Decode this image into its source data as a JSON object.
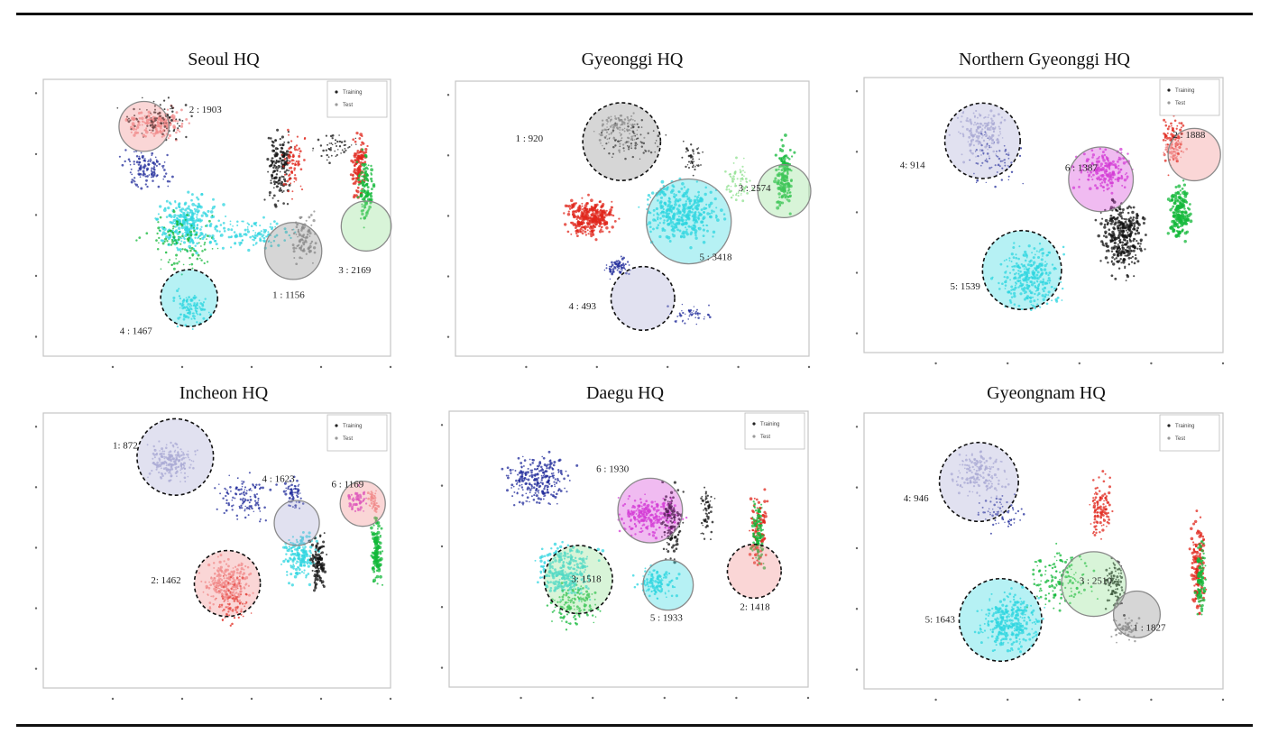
{
  "figure": {
    "colors": {
      "black": "#111111",
      "red": "#e0251b",
      "green": "#13b83a",
      "blue": "#1f2a9a",
      "cyan": "#2fd6e0",
      "magenta": "#d43cd6",
      "pink": "#f08a8a",
      "lavender": "#a9a9d4",
      "lightgreen": "#8fe08f",
      "gray": "#8a8a8a"
    }
  },
  "chart_data": [
    {
      "type": "scatter",
      "title": "Seoul  HQ",
      "legend": {
        "entries": [
          "Training",
          "Test"
        ],
        "placement": "top-right"
      },
      "clusters": [
        {
          "label": "2 : 1903",
          "id": 2,
          "count": 1903,
          "color": "pink"
        },
        {
          "label": "1 : 1156",
          "id": 1,
          "count": 1156,
          "color": "gray"
        },
        {
          "label": "3 : 2169",
          "id": 3,
          "count": 2169,
          "color": "lightgreen"
        },
        {
          "label": "4 : 1467",
          "id": 4,
          "count": 1467,
          "color": "cyan"
        }
      ]
    },
    {
      "type": "scatter",
      "title": "Gyeonggi  HQ",
      "legend": {
        "entries": [],
        "placement": "none"
      },
      "clusters": [
        {
          "label": "1 : 920",
          "id": 1,
          "count": 920,
          "color": "gray"
        },
        {
          "label": "3 : 2574",
          "id": 3,
          "count": 2574,
          "color": "lightgreen"
        },
        {
          "label": "5 : 3418",
          "id": 5,
          "count": 3418,
          "color": "cyan"
        },
        {
          "label": "4 : 493",
          "id": 4,
          "count": 493,
          "color": "lavender"
        }
      ]
    },
    {
      "type": "scatter",
      "title": "Northern  Gyeonggi  HQ",
      "legend": {
        "entries": [
          "Training",
          "Test"
        ],
        "placement": "top-right"
      },
      "clusters": [
        {
          "label": "4: 914",
          "id": 4,
          "count": 914,
          "color": "lavender"
        },
        {
          "label": "6 : 1387",
          "id": 6,
          "count": 1387,
          "color": "magenta"
        },
        {
          "label": "2 : 1888",
          "id": 2,
          "count": 1888,
          "color": "pink"
        },
        {
          "label": "5: 1539",
          "id": 5,
          "count": 1539,
          "color": "cyan"
        }
      ]
    },
    {
      "type": "scatter",
      "title": "Incheon  HQ",
      "legend": {
        "entries": [
          "Training",
          "Test"
        ],
        "placement": "top-right"
      },
      "clusters": [
        {
          "label": "1: 872",
          "id": 1,
          "count": 872,
          "color": "lavender"
        },
        {
          "label": "4 : 1623",
          "id": 4,
          "count": 1623,
          "color": "lavender"
        },
        {
          "label": "6 : 1169",
          "id": 6,
          "count": 1169,
          "color": "pink"
        },
        {
          "label": "2: 1462",
          "id": 2,
          "count": 1462,
          "color": "pink"
        }
      ]
    },
    {
      "type": "scatter",
      "title": "Daegu  HQ",
      "legend": {
        "entries": [
          "Training",
          "Test"
        ],
        "placement": "top-right"
      },
      "clusters": [
        {
          "label": "6 : 1930",
          "id": 6,
          "count": 1930,
          "color": "magenta"
        },
        {
          "label": "3: 1518",
          "id": 3,
          "count": 1518,
          "color": "lightgreen"
        },
        {
          "label": "5 : 1933",
          "id": 5,
          "count": 1933,
          "color": "cyan"
        },
        {
          "label": "2: 1418",
          "id": 2,
          "count": 1418,
          "color": "pink"
        }
      ]
    },
    {
      "type": "scatter",
      "title": "Gyeongnam  HQ",
      "legend": {
        "entries": [
          "Training",
          "Test"
        ],
        "placement": "top-right"
      },
      "clusters": [
        {
          "label": "4: 946",
          "id": 4,
          "count": 946,
          "color": "lavender"
        },
        {
          "label": "3 : 2510",
          "id": 3,
          "count": 2510,
          "color": "lightgreen"
        },
        {
          "label": "1 : 1827",
          "id": 1,
          "count": 1827,
          "color": "gray"
        },
        {
          "label": "5: 1643",
          "id": 5,
          "count": 1643,
          "color": "cyan"
        }
      ]
    }
  ]
}
